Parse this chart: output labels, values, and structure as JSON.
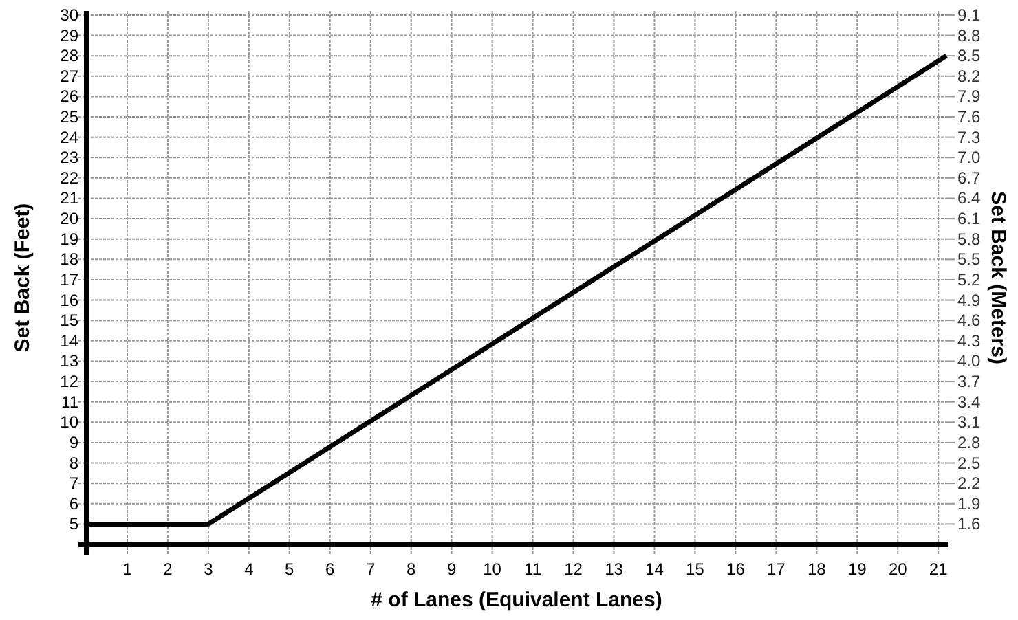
{
  "chart_data": {
    "type": "line",
    "xlabel": "# of Lanes (Equivalent Lanes)",
    "ylabel": "Set Back (Feet)",
    "y2label": "Set Back (Meters)",
    "series": [
      {
        "color": "#000000",
        "x": [
          0,
          3,
          21.2
        ],
        "values": [
          5,
          5,
          28
        ]
      }
    ],
    "xlim": [
      0,
      21.2
    ],
    "xticks": [
      1,
      2,
      3,
      4,
      5,
      6,
      7,
      8,
      9,
      10,
      11,
      12,
      13,
      14,
      15,
      16,
      17,
      18,
      19,
      20,
      21
    ],
    "ylim": [
      4,
      30.2
    ],
    "yticks": [
      5,
      6,
      7,
      8,
      9,
      10,
      11,
      12,
      13,
      14,
      15,
      16,
      17,
      18,
      19,
      20,
      21,
      22,
      23,
      24,
      25,
      26,
      27,
      28,
      29,
      30
    ],
    "y2lim": [
      1.3,
      9.16
    ],
    "y2ticks": [
      1.6,
      1.9,
      2.2,
      2.5,
      2.8,
      3.1,
      3.4,
      3.7,
      {
        "value": 4,
        "label": "4.0"
      },
      4.3,
      4.6,
      4.9,
      5.2,
      5.5,
      5.8,
      6.1,
      6.4,
      6.7,
      {
        "value": 7,
        "label": "7.0"
      },
      7.3,
      7.6,
      7.9,
      8.2,
      8.5,
      8.8,
      9.1
    ],
    "grid": true,
    "marker": "none",
    "line_style": "solid"
  }
}
